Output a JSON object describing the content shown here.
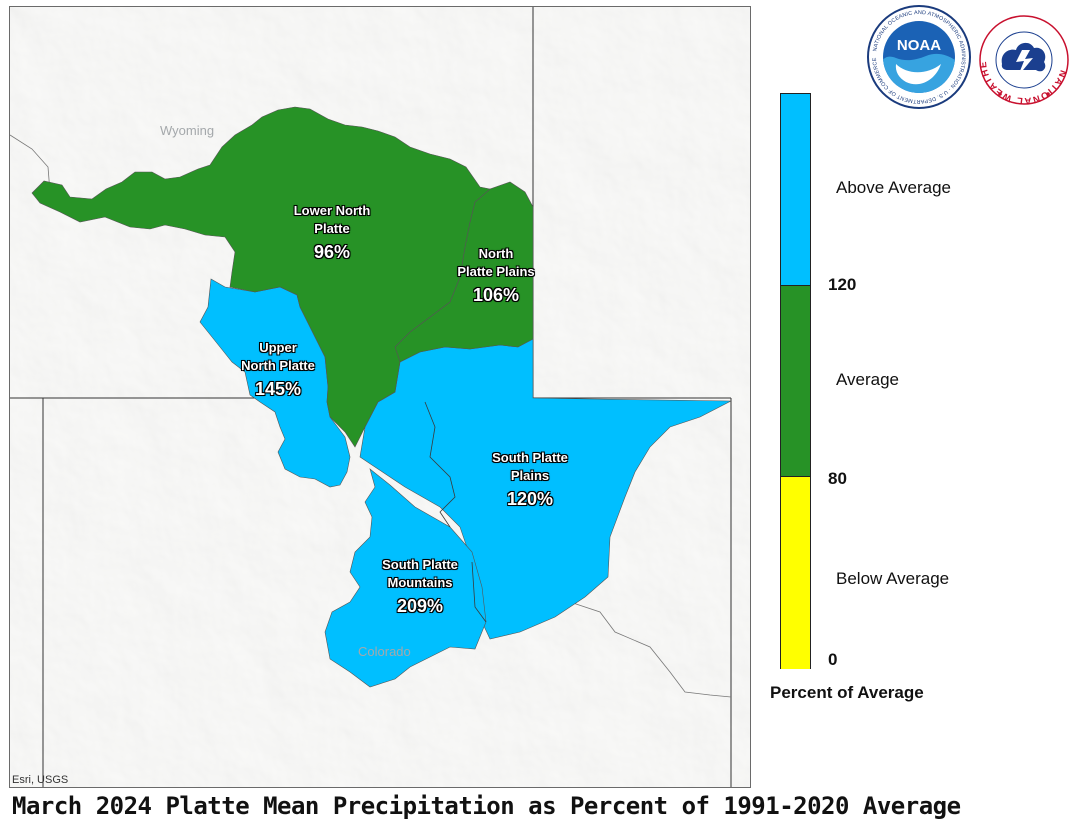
{
  "title": "March 2024 Platte Mean Precipitation as Percent of 1991-2020 Average",
  "attribution": "Esri, USGS",
  "states": {
    "wyoming": "Wyoming",
    "colorado": "Colorado"
  },
  "basins": [
    {
      "name_line1": "Lower North",
      "name_line2": "Platte",
      "percent": "96%",
      "category": "Average",
      "color": "#279226"
    },
    {
      "name_line1": "North",
      "name_line2": "Platte Plains",
      "percent": "106%",
      "category": "Average",
      "color": "#279226"
    },
    {
      "name_line1": "Upper",
      "name_line2": "North Platte",
      "percent": "145%",
      "category": "Above Average",
      "color": "#00bfff"
    },
    {
      "name_line1": "South Platte",
      "name_line2": "Plains",
      "percent": "120%",
      "category": "Above Average",
      "color": "#00bfff"
    },
    {
      "name_line1": "South Platte",
      "name_line2": "Mountains",
      "percent": "209%",
      "category": "Above Average",
      "color": "#00bfff"
    }
  ],
  "legend": {
    "title": "Percent of Average",
    "categories": [
      {
        "label": "Above Average",
        "color": "#00bfff",
        "min": 120,
        "max": 200
      },
      {
        "label": "Average",
        "color": "#279226",
        "min": 80,
        "max": 120
      },
      {
        "label": "Below Average",
        "color": "#ffff00",
        "min": 0,
        "max": 80
      }
    ],
    "ticks": [
      "120",
      "80",
      "0"
    ]
  },
  "logos": {
    "noaa": "NOAA",
    "noaa_ring": "NATIONAL OCEANIC AND ATMOSPHERIC ADMINISTRATION · U.S. DEPARTMENT OF COMMERCE",
    "nws_ring": "NATIONAL WEATHER SERVICE"
  }
}
